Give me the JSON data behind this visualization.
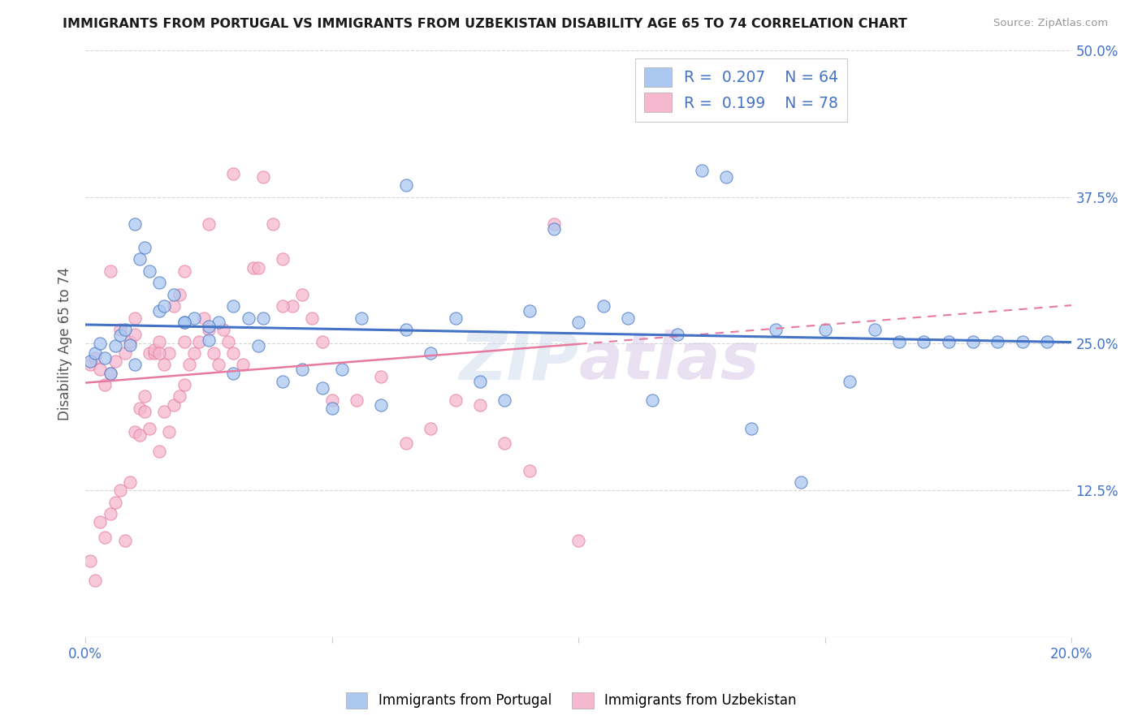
{
  "title": "IMMIGRANTS FROM PORTUGAL VS IMMIGRANTS FROM UZBEKISTAN DISABILITY AGE 65 TO 74 CORRELATION CHART",
  "source": "Source: ZipAtlas.com",
  "ylabel": "Disability Age 65 to 74",
  "xlim": [
    0.0,
    0.2
  ],
  "ylim": [
    0.0,
    0.5
  ],
  "portugal_color": "#aac8f0",
  "uzbekistan_color": "#f5b8ce",
  "trend_portugal_color": "#4472c4",
  "trend_uzbekistan_color": "#e87aa0",
  "R_portugal": 0.207,
  "N_portugal": 64,
  "R_uzbekistan": 0.199,
  "N_uzbekistan": 78,
  "background_color": "#ffffff",
  "portugal_x": [
    0.001,
    0.002,
    0.003,
    0.004,
    0.005,
    0.006,
    0.007,
    0.008,
    0.009,
    0.01,
    0.011,
    0.012,
    0.013,
    0.015,
    0.016,
    0.018,
    0.02,
    0.022,
    0.025,
    0.027,
    0.03,
    0.033,
    0.036,
    0.04,
    0.044,
    0.048,
    0.052,
    0.056,
    0.06,
    0.065,
    0.07,
    0.075,
    0.08,
    0.085,
    0.09,
    0.095,
    0.1,
    0.105,
    0.11,
    0.115,
    0.12,
    0.125,
    0.13,
    0.135,
    0.14,
    0.145,
    0.15,
    0.155,
    0.16,
    0.165,
    0.17,
    0.175,
    0.18,
    0.185,
    0.19,
    0.195,
    0.01,
    0.015,
    0.02,
    0.025,
    0.03,
    0.035,
    0.05,
    0.065
  ],
  "portugal_y": [
    0.235,
    0.242,
    0.25,
    0.238,
    0.225,
    0.248,
    0.257,
    0.262,
    0.249,
    0.232,
    0.322,
    0.332,
    0.312,
    0.278,
    0.282,
    0.292,
    0.268,
    0.272,
    0.253,
    0.268,
    0.282,
    0.272,
    0.272,
    0.218,
    0.228,
    0.212,
    0.228,
    0.272,
    0.198,
    0.262,
    0.242,
    0.272,
    0.218,
    0.202,
    0.278,
    0.348,
    0.268,
    0.282,
    0.272,
    0.202,
    0.258,
    0.398,
    0.392,
    0.178,
    0.262,
    0.132,
    0.262,
    0.218,
    0.262,
    0.252,
    0.252,
    0.252,
    0.252,
    0.252,
    0.252,
    0.252,
    0.352,
    0.302,
    0.268,
    0.265,
    0.225,
    0.248,
    0.195,
    0.385
  ],
  "uzbekistan_x": [
    0.001,
    0.001,
    0.002,
    0.002,
    0.003,
    0.003,
    0.004,
    0.004,
    0.005,
    0.005,
    0.006,
    0.006,
    0.007,
    0.007,
    0.008,
    0.008,
    0.009,
    0.009,
    0.01,
    0.01,
    0.011,
    0.011,
    0.012,
    0.012,
    0.013,
    0.013,
    0.014,
    0.014,
    0.015,
    0.015,
    0.016,
    0.016,
    0.017,
    0.017,
    0.018,
    0.018,
    0.019,
    0.019,
    0.02,
    0.02,
    0.021,
    0.022,
    0.023,
    0.024,
    0.025,
    0.026,
    0.027,
    0.028,
    0.029,
    0.03,
    0.032,
    0.034,
    0.036,
    0.038,
    0.04,
    0.042,
    0.044,
    0.046,
    0.048,
    0.05,
    0.055,
    0.06,
    0.065,
    0.07,
    0.075,
    0.08,
    0.085,
    0.09,
    0.095,
    0.1,
    0.005,
    0.01,
    0.015,
    0.02,
    0.025,
    0.03,
    0.035,
    0.04
  ],
  "uzbekistan_y": [
    0.232,
    0.065,
    0.238,
    0.048,
    0.228,
    0.098,
    0.215,
    0.085,
    0.225,
    0.105,
    0.235,
    0.115,
    0.262,
    0.125,
    0.242,
    0.082,
    0.252,
    0.132,
    0.258,
    0.175,
    0.172,
    0.195,
    0.192,
    0.205,
    0.242,
    0.178,
    0.242,
    0.245,
    0.252,
    0.158,
    0.232,
    0.192,
    0.242,
    0.175,
    0.282,
    0.198,
    0.292,
    0.205,
    0.252,
    0.215,
    0.232,
    0.242,
    0.252,
    0.272,
    0.262,
    0.242,
    0.232,
    0.262,
    0.252,
    0.242,
    0.232,
    0.315,
    0.392,
    0.352,
    0.322,
    0.282,
    0.292,
    0.272,
    0.252,
    0.202,
    0.202,
    0.222,
    0.165,
    0.178,
    0.202,
    0.198,
    0.165,
    0.142,
    0.352,
    0.082,
    0.312,
    0.272,
    0.242,
    0.312,
    0.352,
    0.395,
    0.315,
    0.282
  ]
}
